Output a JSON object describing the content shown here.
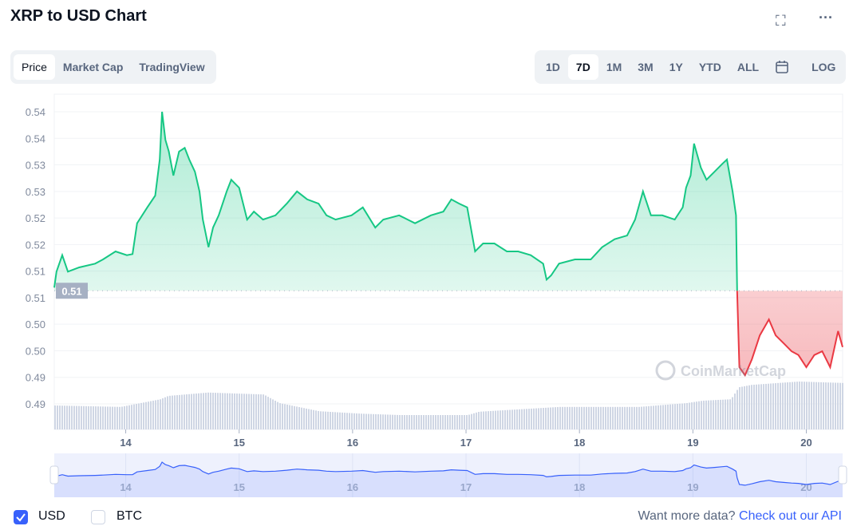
{
  "header": {
    "title": "XRP to USD Chart",
    "fullscreen_icon": "expand-icon",
    "more_icon": "ellipsis-icon"
  },
  "view_tabs": [
    {
      "label": "Price",
      "active": true
    },
    {
      "label": "Market Cap",
      "active": false
    },
    {
      "label": "TradingView",
      "active": false
    }
  ],
  "range_tabs": [
    {
      "label": "1D",
      "active": false
    },
    {
      "label": "7D",
      "active": true
    },
    {
      "label": "1M",
      "active": false
    },
    {
      "label": "3M",
      "active": false
    },
    {
      "label": "1Y",
      "active": false
    },
    {
      "label": "YTD",
      "active": false
    },
    {
      "label": "ALL",
      "active": false
    }
  ],
  "calendar_icon": "calendar-icon",
  "log_label": "LOG",
  "watermark": "CoinMarketCap",
  "chart_data": {
    "type": "area",
    "y_tick_labels": [
      "0.54",
      "0.54",
      "0.53",
      "0.53",
      "0.52",
      "0.52",
      "0.51",
      "0.51",
      "0.50",
      "0.50",
      "0.49",
      "0.49"
    ],
    "x_tick_labels": [
      "14",
      "15",
      "16",
      "17",
      "18",
      "19",
      "20"
    ],
    "x_ticks": [
      14,
      15,
      16,
      17,
      18,
      19,
      20
    ],
    "xlim": [
      13.37,
      20.32
    ],
    "ylim": [
      0.4875,
      0.5425
    ],
    "baseline": {
      "value": 0.5088,
      "label": "0.51"
    },
    "colors": {
      "up": "#16c784",
      "down": "#ea3943",
      "volume": "#cfd6e4",
      "navigator": "#3861fb"
    },
    "price": {
      "x": [
        13.37,
        13.39,
        13.44,
        13.49,
        13.59,
        13.73,
        13.8,
        13.91,
        14.01,
        14.06,
        14.1,
        14.19,
        14.26,
        14.3,
        14.32,
        14.35,
        14.38,
        14.42,
        14.47,
        14.52,
        14.56,
        14.61,
        14.65,
        14.68,
        14.73,
        14.77,
        14.82,
        14.89,
        14.93,
        15.0,
        15.07,
        15.13,
        15.21,
        15.32,
        15.42,
        15.51,
        15.6,
        15.7,
        15.77,
        15.85,
        15.99,
        16.09,
        16.2,
        16.27,
        16.41,
        16.55,
        16.69,
        16.8,
        16.87,
        16.94,
        17.01,
        17.08,
        17.15,
        17.25,
        17.36,
        17.46,
        17.57,
        17.68,
        17.71,
        17.75,
        17.82,
        17.96,
        18.1,
        18.2,
        18.31,
        18.42,
        18.49,
        18.56,
        18.63,
        18.73,
        18.84,
        18.91,
        18.94,
        18.98,
        19.01,
        19.07,
        19.12,
        19.19,
        19.26,
        19.3,
        19.35,
        19.38,
        19.39,
        19.41,
        19.46,
        19.52,
        19.59,
        19.67,
        19.73,
        19.8,
        19.87,
        19.93,
        20.0,
        20.07,
        20.14,
        20.21,
        20.28,
        20.32
      ],
      "y": [
        0.5094,
        0.5124,
        0.5155,
        0.5124,
        0.5132,
        0.5139,
        0.5147,
        0.5162,
        0.5155,
        0.5157,
        0.5215,
        0.5245,
        0.5267,
        0.5335,
        0.5425,
        0.5372,
        0.535,
        0.5305,
        0.535,
        0.5357,
        0.5335,
        0.5312,
        0.5275,
        0.5222,
        0.517,
        0.5207,
        0.523,
        0.5275,
        0.5297,
        0.5282,
        0.5222,
        0.5237,
        0.5222,
        0.523,
        0.5252,
        0.5275,
        0.526,
        0.5252,
        0.523,
        0.5222,
        0.523,
        0.5245,
        0.5207,
        0.5222,
        0.523,
        0.5215,
        0.523,
        0.5237,
        0.526,
        0.5252,
        0.5245,
        0.5162,
        0.5177,
        0.5177,
        0.5162,
        0.5162,
        0.5155,
        0.5139,
        0.5109,
        0.5117,
        0.5139,
        0.5147,
        0.5147,
        0.517,
        0.5185,
        0.5192,
        0.5222,
        0.5275,
        0.523,
        0.523,
        0.5222,
        0.5245,
        0.5282,
        0.5305,
        0.5365,
        0.532,
        0.5297,
        0.5312,
        0.5327,
        0.5335,
        0.5275,
        0.523,
        0.5088,
        0.4944,
        0.4929,
        0.4959,
        0.5004,
        0.5034,
        0.5004,
        0.4989,
        0.4974,
        0.4967,
        0.4944,
        0.4967,
        0.4974,
        0.4944,
        0.5012,
        0.4982
      ]
    },
    "volume": {
      "x": [
        13.37,
        13.95,
        14.3,
        14.37,
        14.72,
        15.21,
        15.35,
        15.7,
        16.06,
        16.41,
        17.01,
        17.11,
        17.82,
        18.52,
        18.94,
        19.08,
        19.33,
        19.4,
        19.51,
        19.93,
        20.32
      ],
      "relative": [
        50,
        47,
        63,
        70,
        77,
        73,
        55,
        38,
        33,
        30,
        30,
        37,
        47,
        47,
        55,
        60,
        63,
        88,
        93,
        100,
        97
      ]
    }
  },
  "footer": {
    "currencies": [
      {
        "label": "USD",
        "checked": true
      },
      {
        "label": "BTC",
        "checked": false
      }
    ],
    "promo_text": "Want more data?",
    "promo_link": "Check out our API"
  }
}
